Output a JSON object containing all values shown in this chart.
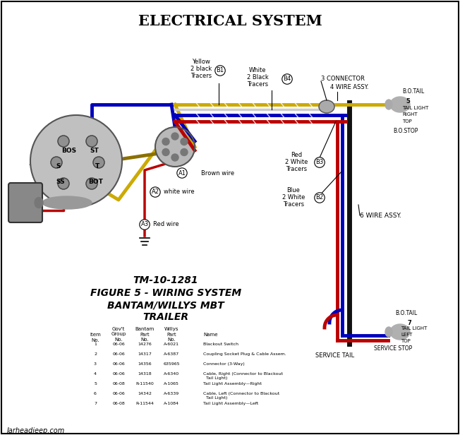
{
  "title": "ELECTRICAL SYSTEM",
  "subtitle_line1": "TM-10-1281",
  "subtitle_line2": "FIGURE 5 - WIRING SYSTEM",
  "subtitle_line3": "BANTAM/WILLYS MBT",
  "subtitle_line4": "TRAILER",
  "watermark": "Jarheadjeep.com",
  "bg_color": "#ffffff",
  "wire_colors": {
    "yellow": "#ccaa00",
    "blue": "#0000bb",
    "red": "#bb0000",
    "black": "#111111",
    "white": "#cccccc",
    "brown": "#8B4513",
    "gray": "#999999"
  },
  "table_rows": [
    [
      "1",
      "06-06",
      "14276",
      "A-6021",
      "Blackout Switch"
    ],
    [
      "2",
      "06-06",
      "14317",
      "A-6387",
      "Coupling Socket Plug & Cable Assem."
    ],
    [
      "3",
      "06-06",
      "14356",
      "635965",
      "Connector (3-Way)"
    ],
    [
      "4",
      "06-06",
      "14318",
      "A-6340",
      "Cable, Right (Connector to Blackout\n  Tail Light)"
    ],
    [
      "5",
      "06-08",
      "R-11540",
      "A-1065",
      "Tail Light Assembly—Right"
    ],
    [
      "6",
      "06-06",
      "14342",
      "A-6339",
      "Cable, Left (Connector to Blackout\n  Tail Light)"
    ],
    [
      "7",
      "06-08",
      "R-11544",
      "A-1084",
      "Tail Light Assembly—Left"
    ]
  ]
}
